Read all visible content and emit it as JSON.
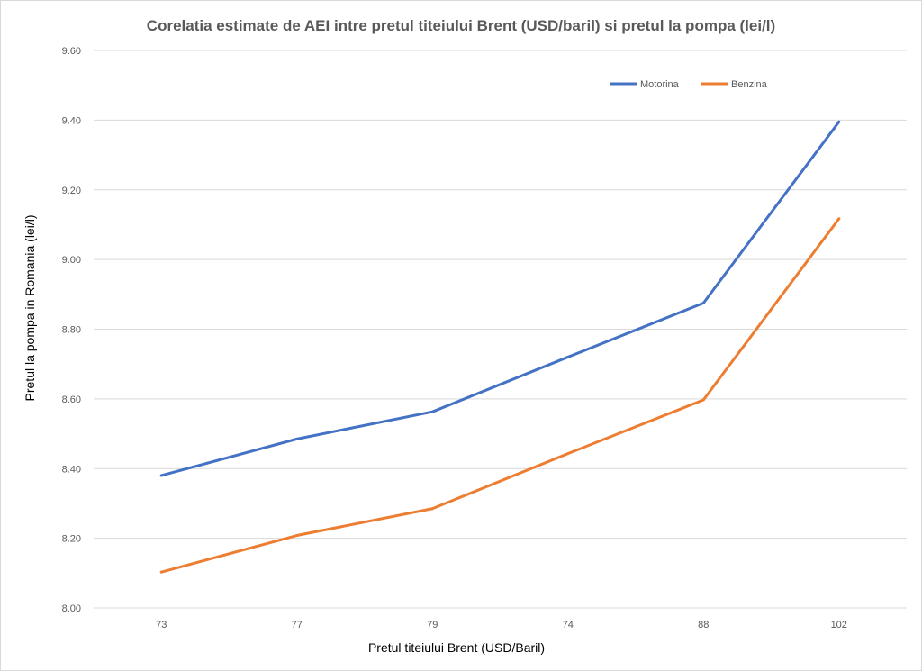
{
  "chart_data": {
    "type": "line",
    "title": "Corelatia estimate de AEI intre pretul titeiului Brent (USD/baril) si pretul la pompa (lei/l)",
    "xlabel": "Pretul titeiului Brent (USD/Baril)",
    "ylabel": "Pretul la pompa in Romania (lei/l)",
    "categories": [
      "73",
      "77",
      "79",
      "74",
      "88",
      "102"
    ],
    "ylim": [
      8.0,
      9.6
    ],
    "yticks": [
      "8.00",
      "8.20",
      "8.40",
      "8.60",
      "8.80",
      "9.00",
      "9.20",
      "9.40",
      "9.60"
    ],
    "grid": true,
    "legend_position": "top-right",
    "series": [
      {
        "name": "Motorina",
        "color": "#4472c4",
        "values": [
          8.38,
          8.485,
          8.563,
          8.72,
          8.875,
          9.395
        ]
      },
      {
        "name": "Benzina",
        "color": "#ed7d31",
        "values": [
          8.103,
          8.208,
          8.285,
          8.443,
          8.597,
          9.117
        ]
      }
    ]
  }
}
